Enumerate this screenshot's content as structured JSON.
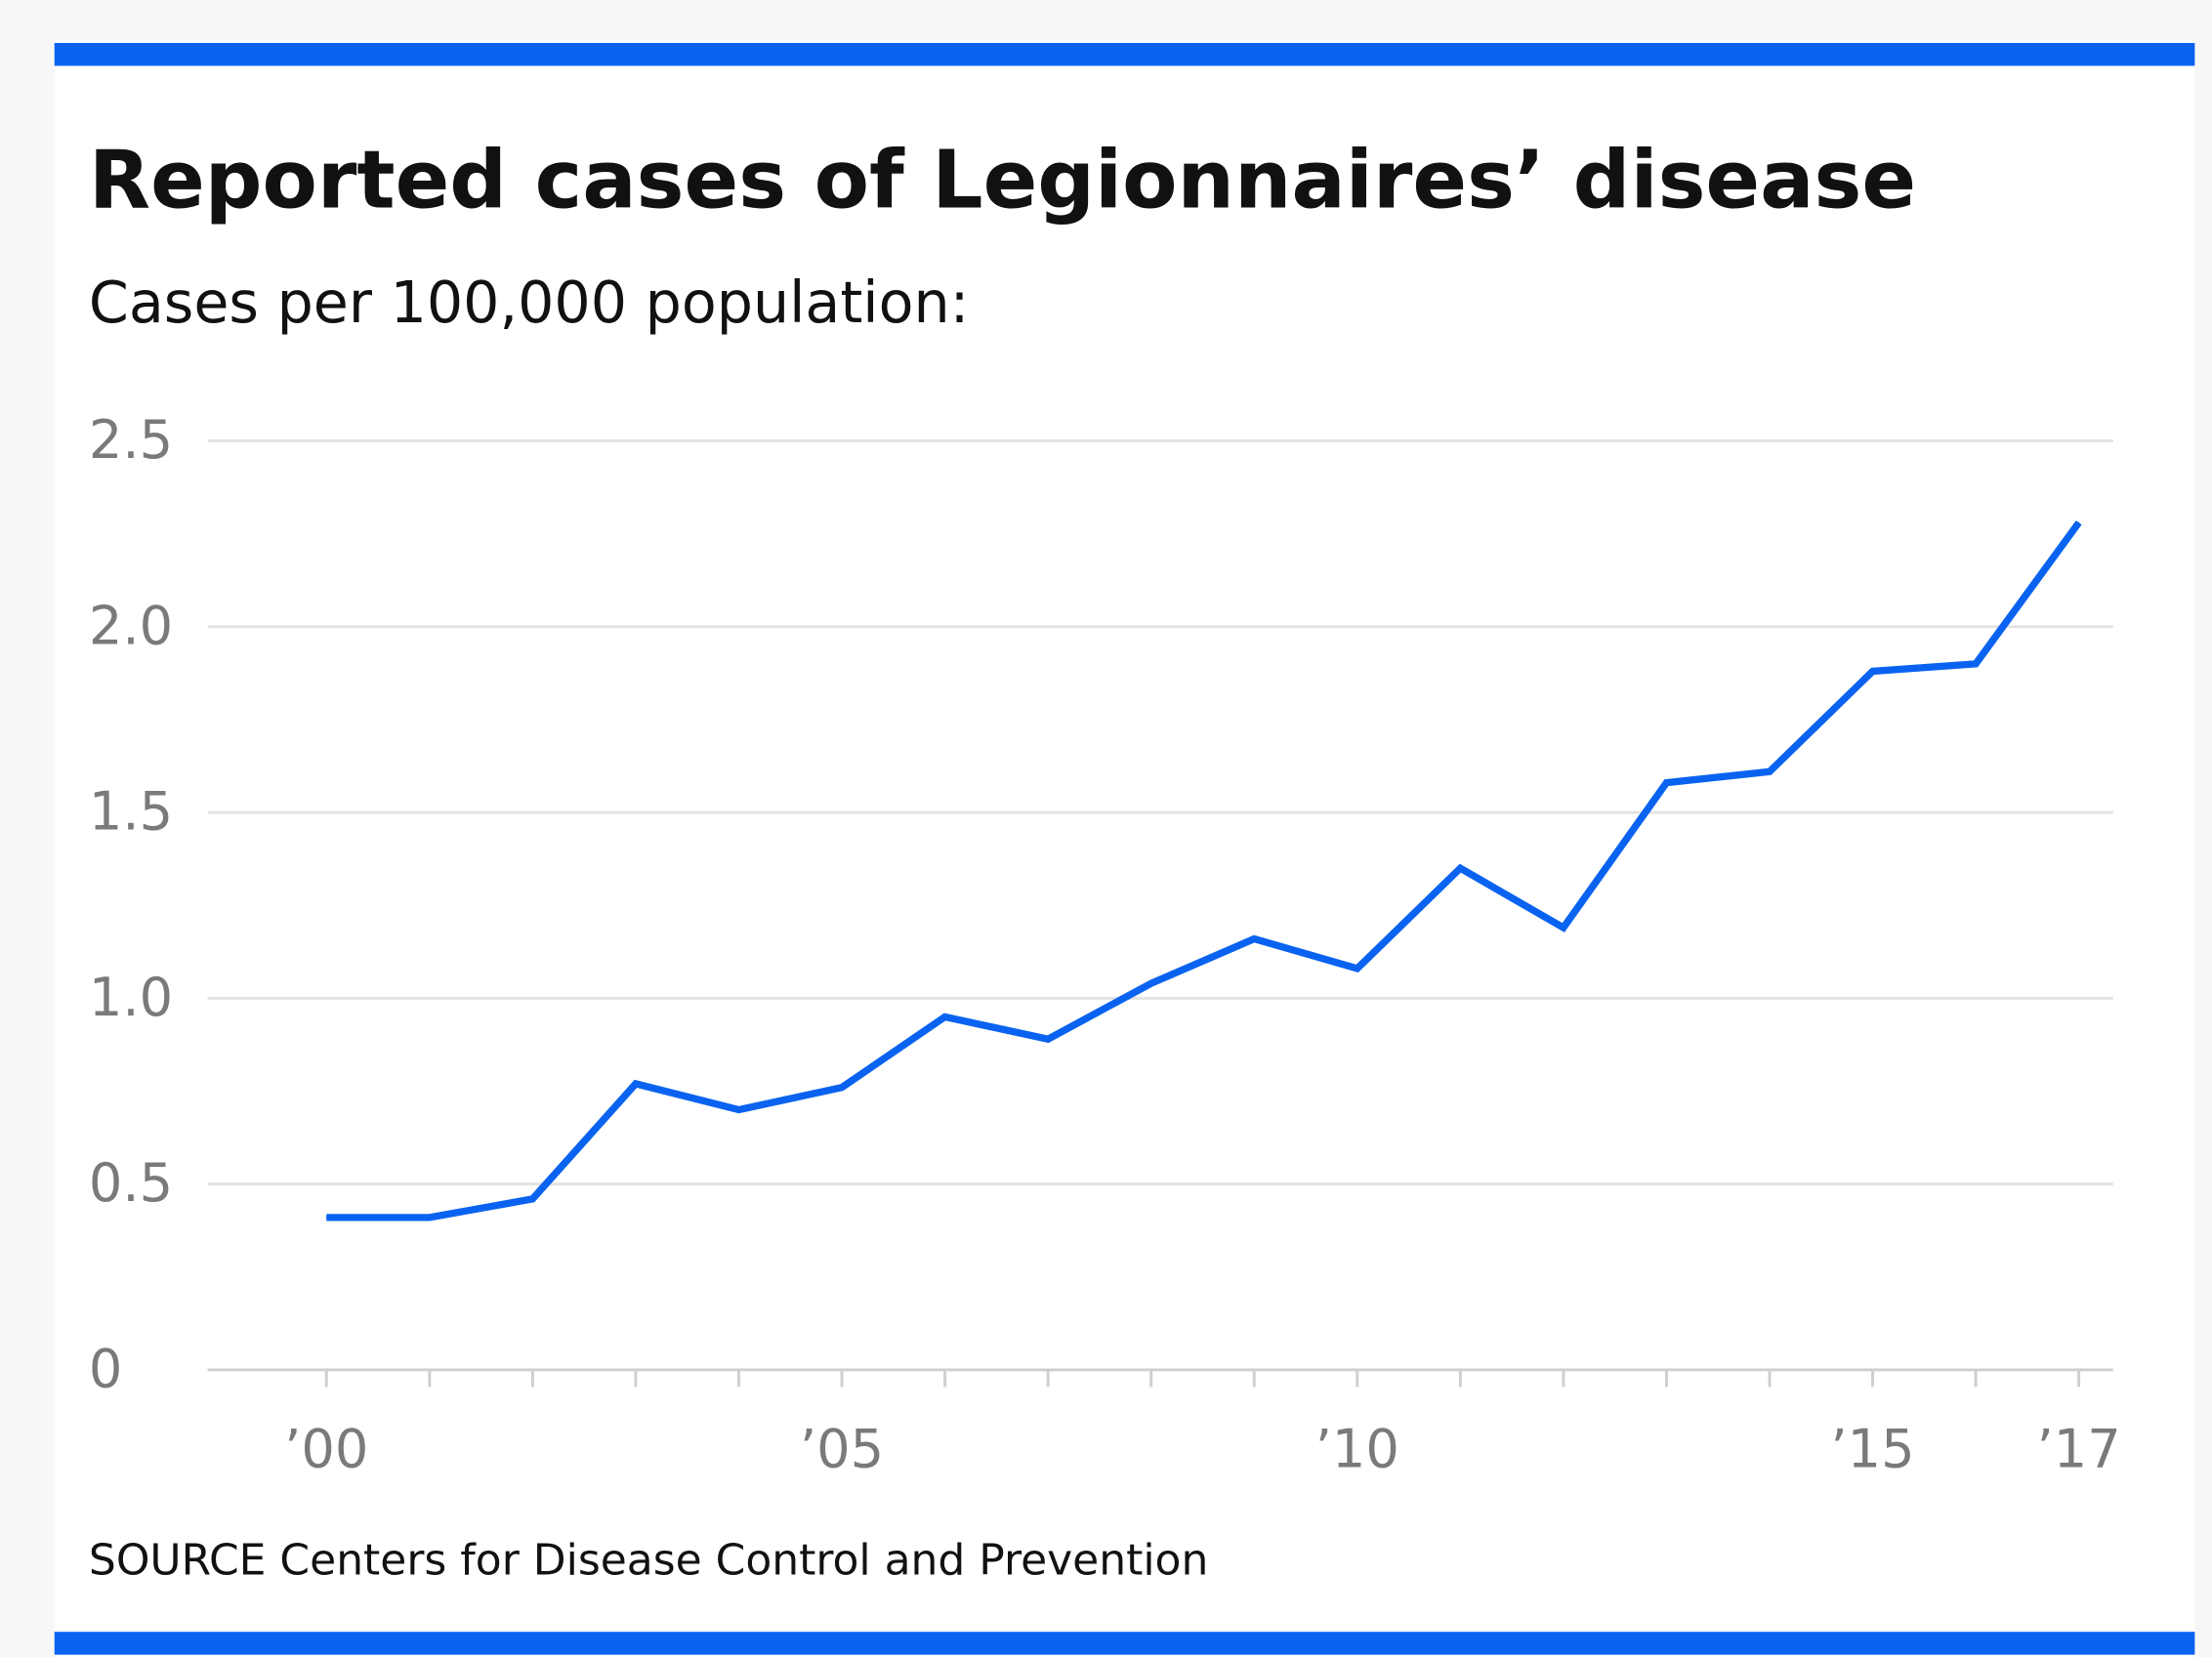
{
  "colors": {
    "accent": "#0a63f0",
    "grid": "#e3e3e3",
    "axis": "#cfcfcf",
    "tick_text": "#7a7a7a"
  },
  "chart_data": {
    "type": "line",
    "title": "Reported cases of Legionnaires’ disease",
    "subtitle": "Cases per 100,000 population:",
    "source": "SOURCE Centers for Disease Control and Prevention",
    "xlabel": "",
    "ylabel": "Cases per 100,000 population",
    "x": [
      2000,
      2001,
      2002,
      2003,
      2004,
      2005,
      2006,
      2007,
      2008,
      2009,
      2010,
      2011,
      2012,
      2013,
      2014,
      2015,
      2016,
      2017
    ],
    "series": [
      {
        "name": "Cases per 100,000",
        "values": [
          0.41,
          0.41,
          0.46,
          0.77,
          0.7,
          0.76,
          0.95,
          0.89,
          1.04,
          1.16,
          1.08,
          1.35,
          1.19,
          1.58,
          1.61,
          1.88,
          1.9,
          2.28
        ]
      }
    ],
    "xlim": [
      2000,
      2017
    ],
    "ylim": [
      0,
      2.5
    ],
    "yticks": [
      {
        "value": 0,
        "label": "0"
      },
      {
        "value": 0.5,
        "label": "0.5"
      },
      {
        "value": 1.0,
        "label": "1.0"
      },
      {
        "value": 1.5,
        "label": "1.5"
      },
      {
        "value": 2.0,
        "label": "2.0"
      },
      {
        "value": 2.5,
        "label": "2.5"
      }
    ],
    "xticks": [
      {
        "value": 2000,
        "label": "’00"
      },
      {
        "value": 2005,
        "label": "’05"
      },
      {
        "value": 2010,
        "label": "’10"
      },
      {
        "value": 2015,
        "label": "’15"
      },
      {
        "value": 2017,
        "label": "’17"
      }
    ],
    "grid": true,
    "legend": "none"
  }
}
